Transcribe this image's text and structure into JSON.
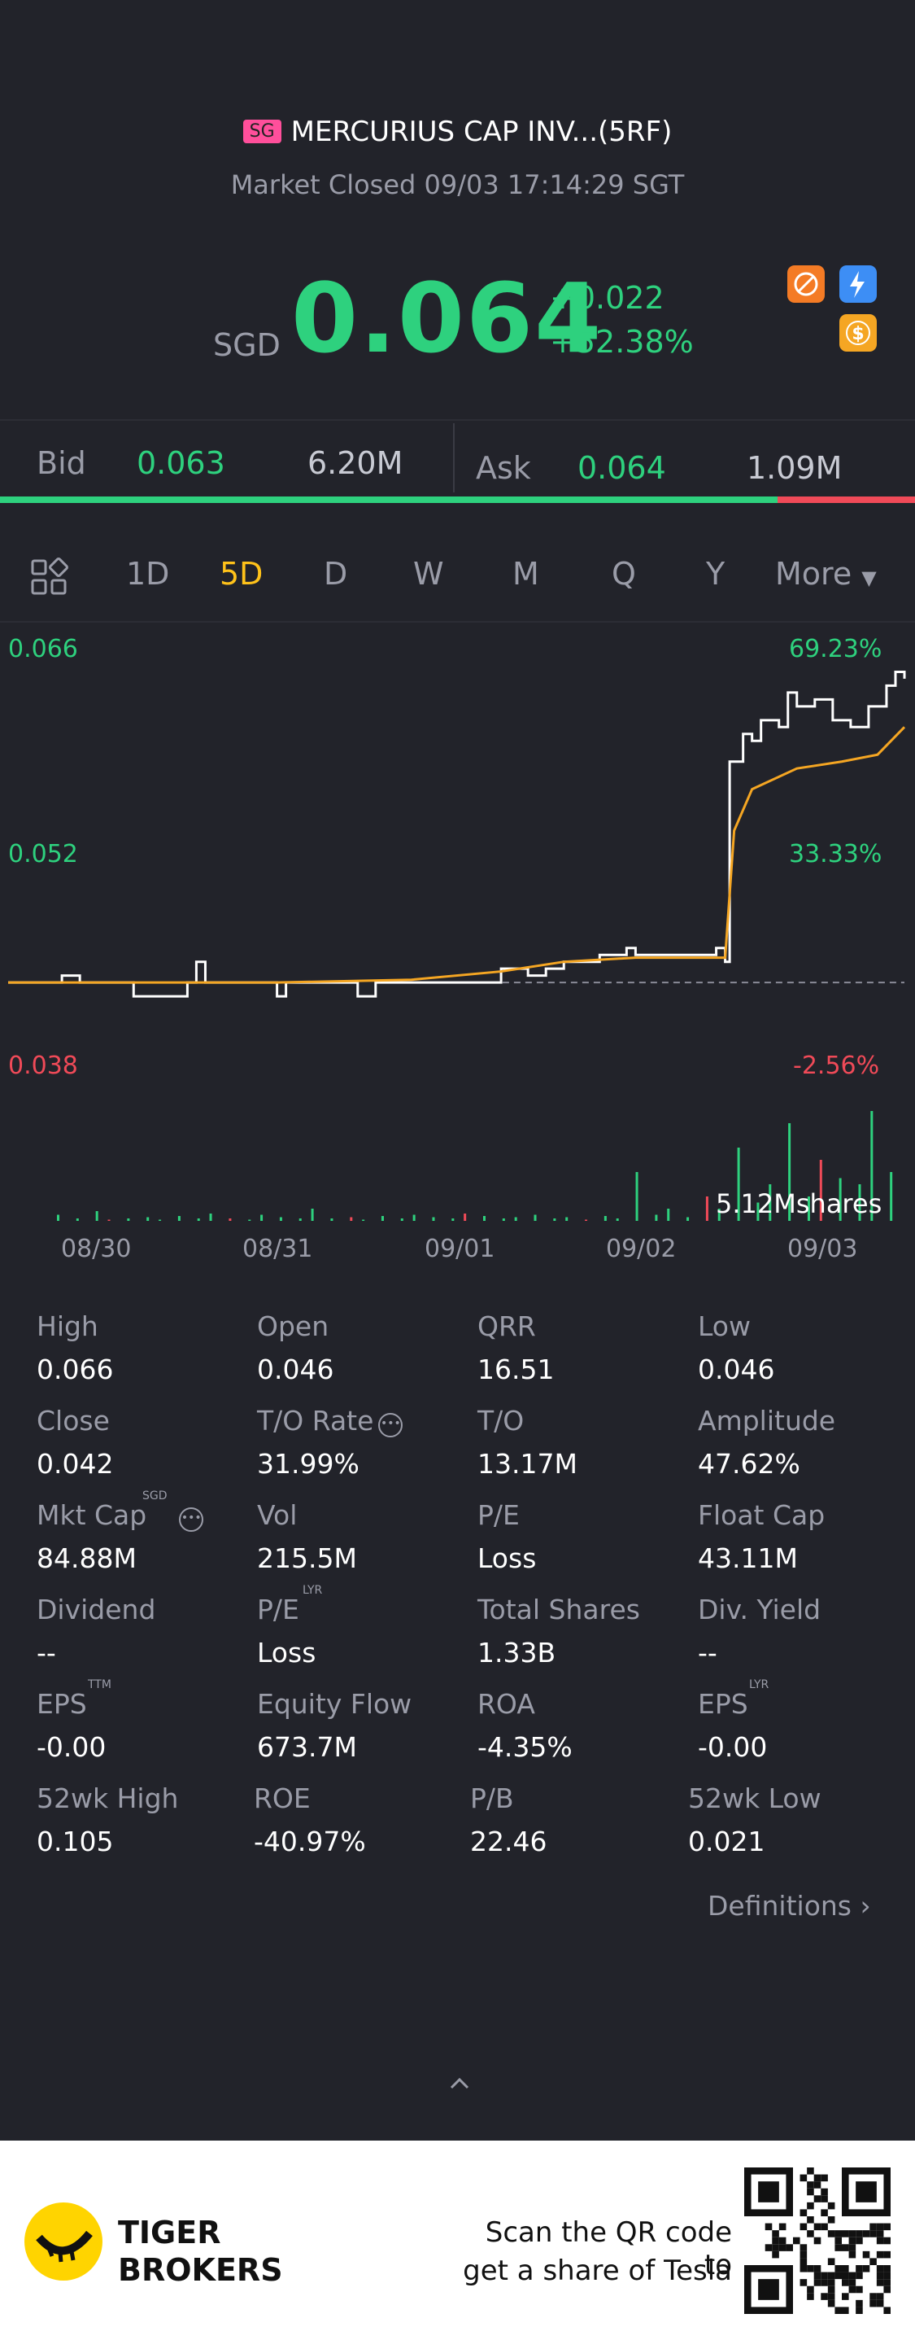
{
  "header": {
    "exchange_badge": "SG",
    "title": "MERCURIUS CAP INV...(5RF)",
    "status": "Market Closed 09/03 17:14:29 SGT",
    "currency": "SGD",
    "price": "0.064",
    "change_abs": "+0.022",
    "change_pct": "+52.38%",
    "icons": [
      "no-short-icon",
      "level-1-lightning-icon",
      "dollar-icon"
    ]
  },
  "bidask": {
    "bid_label": "Bid",
    "bid_price": "0.063",
    "bid_size": "6.20M",
    "ask_label": "Ask",
    "ask_price": "0.064",
    "ask_size": "1.09M",
    "bid_ratio": 0.85
  },
  "tabs": {
    "items": [
      "1D",
      "5D",
      "D",
      "W",
      "M",
      "Q",
      "Y",
      "More"
    ],
    "active": "5D"
  },
  "chart": {
    "y_left": [
      "0.066",
      "0.052",
      "0.038"
    ],
    "y_right": [
      "69.23%",
      "33.33%",
      "-2.56%"
    ],
    "volume_label": "5.12Mshares",
    "x_labels": [
      "08/30",
      "08/31",
      "09/01",
      "09/02",
      "09/03"
    ]
  },
  "chart_data": {
    "type": "line",
    "title": "",
    "xlabel": "",
    "ylabel": "",
    "ylim": [
      0.038,
      0.066
    ],
    "reference_close": 0.042,
    "categories": [
      "08/30",
      "08/31",
      "09/01",
      "09/02",
      "09/03"
    ],
    "series": [
      {
        "name": "",
        "color": "#ffffff",
        "points": [
          [
            0,
            0.042
          ],
          [
            0.05,
            0.042
          ],
          [
            0.06,
            0.0425
          ],
          [
            0.08,
            0.042
          ],
          [
            0.13,
            0.042
          ],
          [
            0.14,
            0.041
          ],
          [
            0.19,
            0.041
          ],
          [
            0.2,
            0.042
          ],
          [
            0.21,
            0.0435
          ],
          [
            0.22,
            0.042
          ],
          [
            0.29,
            0.042
          ],
          [
            0.3,
            0.041
          ],
          [
            0.31,
            0.042
          ],
          [
            0.38,
            0.042
          ],
          [
            0.39,
            0.041
          ],
          [
            0.41,
            0.042
          ],
          [
            0.5,
            0.042
          ],
          [
            0.55,
            0.043
          ],
          [
            0.58,
            0.0425
          ],
          [
            0.6,
            0.043
          ],
          [
            0.62,
            0.0435
          ],
          [
            0.66,
            0.044
          ],
          [
            0.69,
            0.0445
          ],
          [
            0.7,
            0.044
          ],
          [
            0.76,
            0.044
          ],
          [
            0.79,
            0.0445
          ],
          [
            0.8,
            0.0435
          ],
          [
            0.805,
            0.058
          ],
          [
            0.82,
            0.06
          ],
          [
            0.83,
            0.0595
          ],
          [
            0.84,
            0.061
          ],
          [
            0.86,
            0.0605
          ],
          [
            0.87,
            0.063
          ],
          [
            0.88,
            0.062
          ],
          [
            0.9,
            0.0625
          ],
          [
            0.92,
            0.061
          ],
          [
            0.94,
            0.0605
          ],
          [
            0.96,
            0.062
          ],
          [
            0.98,
            0.0635
          ],
          [
            0.99,
            0.0645
          ],
          [
            1.0,
            0.064
          ]
        ]
      },
      {
        "name": "",
        "color": "#f5a623",
        "points": [
          [
            0,
            0.042
          ],
          [
            0.1,
            0.042
          ],
          [
            0.3,
            0.042
          ],
          [
            0.45,
            0.0422
          ],
          [
            0.55,
            0.0428
          ],
          [
            0.62,
            0.0435
          ],
          [
            0.7,
            0.0438
          ],
          [
            0.8,
            0.0438
          ],
          [
            0.81,
            0.053
          ],
          [
            0.83,
            0.056
          ],
          [
            0.88,
            0.0575
          ],
          [
            0.93,
            0.058
          ],
          [
            0.97,
            0.0585
          ],
          [
            1.0,
            0.0605
          ]
        ]
      }
    ],
    "volume": [
      0.05,
      0.02,
      0.08,
      0.01,
      0.02,
      0.03,
      0.01,
      0.04,
      0.02,
      0.06,
      0.02,
      0.01,
      0.05,
      0.03,
      0.02,
      0.1,
      0.02,
      0.03,
      0.01,
      0.04,
      0.02,
      0.05,
      0.03,
      0.02,
      0.06,
      0.04,
      0.02,
      0.03,
      0.05,
      0.02,
      0.03,
      0.01,
      0.04,
      0.02,
      0.4,
      0.05,
      0.1,
      0.03,
      0.2,
      0.1,
      0.6,
      0.15,
      0.3,
      0.8,
      0.2,
      0.5,
      0.35,
      0.3,
      0.9,
      0.4
    ]
  },
  "stats": {
    "rows": [
      [
        {
          "label": "High",
          "value": "0.066"
        },
        {
          "label": "Open",
          "value": "0.046"
        },
        {
          "label": "QRR",
          "value": "16.51"
        },
        {
          "label": "Low",
          "value": "0.046"
        }
      ],
      [
        {
          "label": "Close",
          "value": "0.042"
        },
        {
          "label": "T/O Rate",
          "value": "31.99%"
        },
        {
          "label": "T/O",
          "value": "13.17M"
        },
        {
          "label": "Amplitude",
          "value": "47.62%"
        }
      ],
      [
        {
          "label": "Mkt Cap",
          "value": "84.88M"
        },
        {
          "label": "Vol",
          "value": "215.5M"
        },
        {
          "label": "P/E",
          "value": "Loss"
        },
        {
          "label": "Float Cap",
          "value": "43.11M"
        }
      ],
      [
        {
          "label": "Dividend",
          "value": "--"
        },
        {
          "label": "P/E",
          "value": "Loss"
        },
        {
          "label": "Total Shares",
          "value": "1.33B"
        },
        {
          "label": "Div. Yield",
          "value": "--"
        }
      ],
      [
        {
          "label": "EPS",
          "value": "-0.00"
        },
        {
          "label": "Equity Flow",
          "value": "673.7M"
        },
        {
          "label": "ROA",
          "value": "-4.35%"
        },
        {
          "label": "EPS",
          "value": "-0.00"
        }
      ],
      [
        {
          "label": "52wk High",
          "value": "0.105"
        },
        {
          "label": "ROE",
          "value": "-40.97%"
        },
        {
          "label": "P/B",
          "value": "22.46"
        },
        {
          "label": "52wk Low",
          "value": "0.021"
        }
      ]
    ],
    "superscripts": {
      "mkt_cap": "SGD",
      "pe_lyr": "LYR",
      "eps_ttm": "TTM",
      "eps_lyr": "LYR"
    },
    "definitions": "Definitions"
  },
  "footer": {
    "brand_line1": "TIGER",
    "brand_line2": "BROKERS",
    "promo_line1": "Scan the QR code to",
    "promo_line2": "get a share of Tesla"
  }
}
